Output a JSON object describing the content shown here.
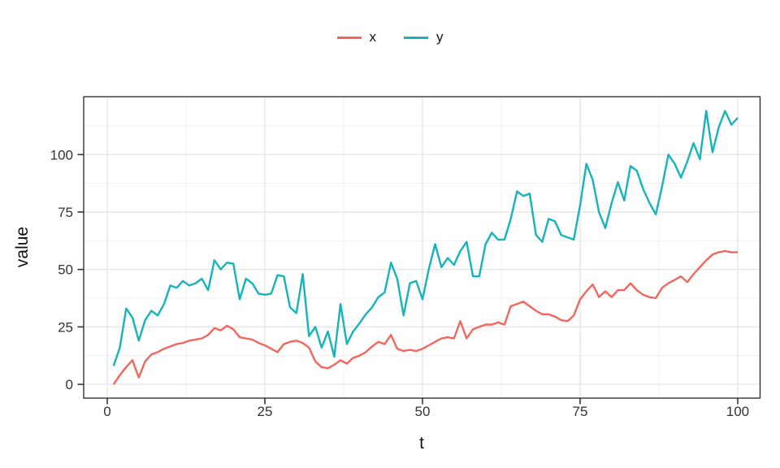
{
  "chart_data": {
    "type": "line",
    "title": "",
    "xlabel": "t",
    "ylabel": "value",
    "legend_position": "top-center",
    "grid": true,
    "background": "#ffffff",
    "panel_border_color": "#333333",
    "major_grid_color": "#e4e4e4",
    "minor_grid_color": "#f1f1f1",
    "tick_color": "#333333",
    "xlim": [
      -3.74,
      103.55
    ],
    "ylim": [
      -6.0,
      125.2
    ],
    "x_ticks": [
      0,
      25,
      50,
      75,
      100
    ],
    "y_ticks": [
      0,
      25,
      50,
      75,
      100
    ],
    "x_minor_ticks": [
      12.5,
      37.5,
      62.5,
      87.5
    ],
    "y_minor_ticks": [
      12.5,
      37.5,
      62.5,
      87.5,
      112.5
    ],
    "x": [
      1,
      2,
      3,
      4,
      5,
      6,
      7,
      8,
      9,
      10,
      11,
      12,
      13,
      14,
      15,
      16,
      17,
      18,
      19,
      20,
      21,
      22,
      23,
      24,
      25,
      26,
      27,
      28,
      29,
      30,
      31,
      32,
      33,
      34,
      35,
      36,
      37,
      38,
      39,
      40,
      41,
      42,
      43,
      44,
      45,
      46,
      47,
      48,
      49,
      50,
      51,
      52,
      53,
      54,
      55,
      56,
      57,
      58,
      59,
      60,
      61,
      62,
      63,
      64,
      65,
      66,
      67,
      68,
      69,
      70,
      71,
      72,
      73,
      74,
      75,
      76,
      77,
      78,
      79,
      80,
      81,
      82,
      83,
      84,
      85,
      86,
      87,
      88,
      89,
      90,
      91,
      92,
      93,
      94,
      95,
      96,
      97,
      98,
      99,
      100
    ],
    "series": [
      {
        "name": "x",
        "color": "#f4655c",
        "values": [
          0,
          4,
          7.5,
          10.5,
          3,
          10,
          13,
          14,
          15.5,
          16.5,
          17.5,
          18,
          19,
          19.5,
          20,
          21.5,
          24.5,
          23.5,
          25.5,
          24,
          20.5,
          20,
          19.5,
          18,
          17,
          15.5,
          14,
          17.5,
          18.5,
          19,
          18,
          16,
          10,
          7.5,
          7,
          8.5,
          10.5,
          9,
          11.5,
          12.5,
          14,
          16.5,
          18.5,
          17.5,
          21.5,
          15.5,
          14.5,
          15,
          14.5,
          15.5,
          17,
          18.5,
          20,
          20.5,
          20,
          27.5,
          20,
          24,
          25,
          26,
          26,
          27,
          26,
          34,
          35,
          36,
          34,
          32,
          30.5,
          30.5,
          29.5,
          28,
          27.5,
          30,
          37,
          40.5,
          43.5,
          38,
          40.5,
          38,
          41,
          41,
          44,
          41,
          39,
          38,
          37.5,
          42,
          44,
          45.5,
          47,
          44.5,
          48,
          51,
          54,
          56.5,
          57.5,
          58,
          57.5,
          57.5
        ]
      },
      {
        "name": "y",
        "color": "#15b4ba",
        "values": [
          8,
          16,
          33,
          29,
          19,
          28,
          32,
          30,
          35,
          43,
          42,
          45,
          43,
          44,
          46,
          41,
          54,
          50,
          53,
          52.5,
          37,
          46,
          44,
          39.5,
          39,
          39.5,
          47.5,
          47,
          33.5,
          31,
          48,
          21,
          25,
          16,
          23,
          12,
          35,
          17.5,
          23,
          26.5,
          30.5,
          33.5,
          38,
          40,
          53,
          46,
          30,
          44,
          45,
          37,
          50,
          61,
          51,
          55,
          52,
          58,
          62,
          47,
          47,
          61,
          66,
          63,
          63,
          72,
          84,
          82,
          83,
          65,
          62,
          72,
          71,
          65,
          64,
          63,
          78,
          96,
          89,
          75,
          68,
          79,
          88,
          80,
          95,
          93,
          85,
          79,
          74,
          86,
          100,
          96,
          90,
          97,
          105,
          98,
          119,
          101,
          112,
          119,
          113,
          116
        ]
      }
    ]
  }
}
